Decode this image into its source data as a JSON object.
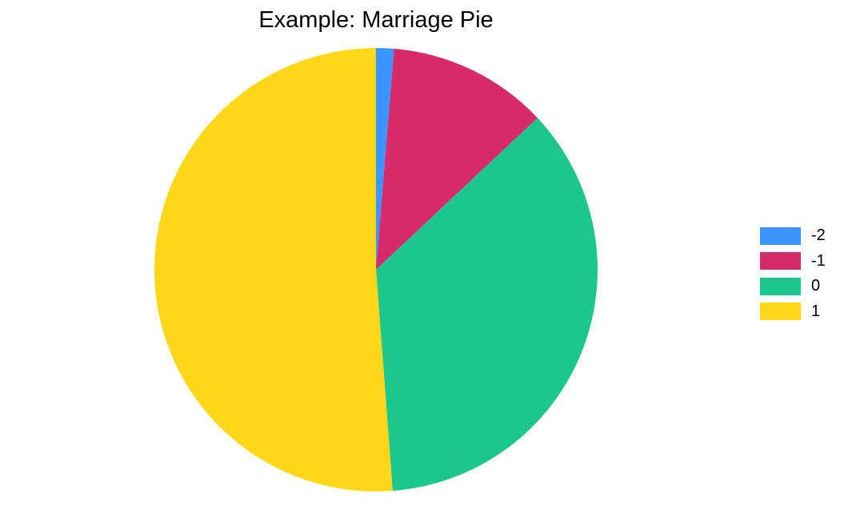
{
  "chart_data": {
    "type": "pie",
    "title": "Example: Marriage Pie",
    "categories": [
      "-2",
      "-1",
      "0",
      "1"
    ],
    "values": [
      1.3,
      11.7,
      35.8,
      51.2
    ],
    "colors": [
      "#3a95ff",
      "#d72a6a",
      "#1cc68c",
      "#fed718"
    ],
    "start_angle": "12 o'clock",
    "direction": "clockwise",
    "legend_position": "right"
  }
}
